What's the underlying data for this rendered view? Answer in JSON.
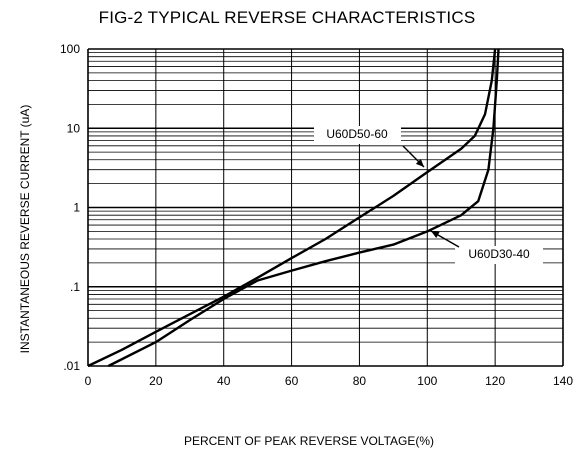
{
  "chart_data": {
    "type": "line",
    "title": "FIG-2 TYPICAL REVERSE CHARACTERISTICS",
    "xlabel": "PERCENT OF PEAK REVERSE VOLTAGE(%)",
    "ylabel": "INSTANTANEOUS REVERSE CURRENT (uA)",
    "x_scale": "linear",
    "y_scale": "log",
    "xlim": [
      0,
      140
    ],
    "ylim": [
      0.01,
      100
    ],
    "x_ticks": [
      0,
      20,
      40,
      60,
      80,
      100,
      120,
      140
    ],
    "y_ticks": [
      {
        "value": 0.01,
        "label": ".01"
      },
      {
        "value": 0.1,
        "label": ".1"
      },
      {
        "value": 1,
        "label": "1"
      },
      {
        "value": 10,
        "label": "10"
      },
      {
        "value": 100,
        "label": "100"
      }
    ],
    "grid": true,
    "series": [
      {
        "name": "U60D50-60",
        "x": [
          0,
          10,
          20,
          30,
          40,
          50,
          60,
          70,
          80,
          90,
          100,
          110,
          114,
          117,
          119,
          120
        ],
        "y": [
          0.01,
          0.016,
          0.027,
          0.045,
          0.075,
          0.13,
          0.23,
          0.4,
          0.75,
          1.4,
          2.8,
          5.5,
          8,
          15,
          40,
          100
        ]
      },
      {
        "name": "U60D30-40",
        "x": [
          6,
          20,
          30,
          40,
          50,
          60,
          70,
          80,
          90,
          100,
          110,
          115,
          118,
          119.5,
          120.5,
          121
        ],
        "y": [
          0.01,
          0.02,
          0.038,
          0.07,
          0.12,
          0.16,
          0.21,
          0.27,
          0.34,
          0.5,
          0.8,
          1.2,
          3,
          10,
          40,
          100
        ]
      }
    ]
  }
}
